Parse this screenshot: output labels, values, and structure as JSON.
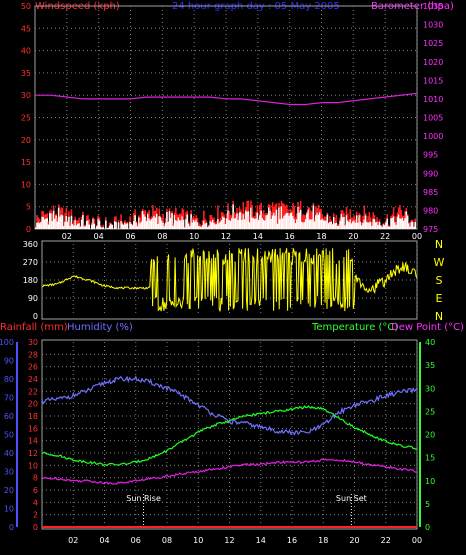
{
  "header": {
    "windspeed_label": "Windspeed (kph)",
    "title": "24 hour graph day : 05 May 2005",
    "barometer_label": "Barometer (hpa)"
  },
  "bottom_labels": {
    "rainfall": "Rainfall (mm)",
    "humidity": "Humidity (%)",
    "temperature": "Temperature (°C)",
    "dewpoint": "Dew Point (°C)"
  },
  "annotations": {
    "sunrise": "Sun Rise",
    "sunset": "Sun Set"
  },
  "x_ticks": [
    "02",
    "04",
    "06",
    "08",
    "10",
    "12",
    "14",
    "16",
    "18",
    "20",
    "22",
    "00"
  ],
  "colors": {
    "windspeed": "#ff2020",
    "gust": "#ffffff",
    "wind_avg": "#20ff20",
    "barometer": "#e020e0",
    "direction": "#ffff00",
    "rainfall": "#ff2020",
    "humidity": "#7070ff",
    "temperature": "#20ff20",
    "dewpoint": "#e020e0",
    "axis_red": "#ff3030",
    "axis_magenta": "#ff30ff",
    "axis_blue": "#5050ff",
    "axis_green": "#30ff30",
    "title": "#3030ff",
    "grid": "#808080"
  },
  "chart_data": [
    {
      "type": "line",
      "name": "wind-barometer",
      "x": [
        0,
        1,
        2,
        3,
        4,
        5,
        6,
        7,
        8,
        9,
        10,
        11,
        12,
        13,
        14,
        15,
        16,
        17,
        18,
        19,
        20,
        21,
        22,
        23,
        24
      ],
      "series": [
        {
          "name": "Windspeed (kph)",
          "axis": "left",
          "values": [
            2,
            4,
            3,
            2,
            1,
            1,
            2,
            4,
            3,
            3,
            2,
            3,
            4,
            5,
            4,
            5,
            4,
            5,
            3,
            2,
            4,
            3,
            2,
            4,
            1
          ]
        },
        {
          "name": "Barometer (hpa)",
          "axis": "right",
          "values": [
            1011,
            1011,
            1010.5,
            1010,
            1010,
            1010,
            1010,
            1010.5,
            1010.5,
            1010.5,
            1010.5,
            1010.5,
            1010,
            1010,
            1009.5,
            1009,
            1008.5,
            1008.5,
            1009,
            1009,
            1009.5,
            1010,
            1010.5,
            1011,
            1011.5
          ]
        }
      ],
      "ylim_left": [
        0,
        50
      ],
      "ylim_right": [
        975,
        1035
      ],
      "yticks_left": [
        0,
        5,
        10,
        15,
        20,
        25,
        30,
        35,
        40,
        45,
        50
      ],
      "yticks_right": [
        975,
        980,
        985,
        990,
        995,
        1000,
        1005,
        1010,
        1015,
        1020,
        1025,
        1030,
        1035
      ],
      "grid": true
    },
    {
      "type": "line",
      "name": "wind-direction",
      "x": [
        0,
        1,
        2,
        3,
        4,
        5,
        6,
        6.9,
        7,
        8,
        9,
        10,
        11,
        12,
        13,
        14,
        15,
        16,
        17,
        18,
        19,
        20,
        21,
        22,
        23,
        24
      ],
      "values": [
        150,
        160,
        200,
        180,
        150,
        140,
        140,
        140,
        320,
        300,
        180,
        240,
        60,
        300,
        270,
        150,
        320,
        100,
        220,
        300,
        230,
        200,
        130,
        180,
        250,
        210
      ],
      "ylim": [
        0,
        360
      ],
      "yticks": [
        0,
        90,
        180,
        270,
        360
      ],
      "right_labels": [
        "N",
        "W",
        "S",
        "E",
        "N"
      ],
      "grid": true
    },
    {
      "type": "line",
      "name": "rain-humidity-temperature",
      "x": [
        0,
        1,
        2,
        3,
        4,
        5,
        6,
        7,
        8,
        9,
        10,
        11,
        12,
        13,
        14,
        15,
        16,
        17,
        18,
        19,
        20,
        21,
        22,
        23,
        24
      ],
      "series": [
        {
          "name": "Humidity (%)",
          "axis": "left_blue",
          "values": [
            68,
            69,
            71,
            74,
            78,
            80,
            80,
            78,
            75,
            71,
            66,
            61,
            57,
            56,
            54,
            52,
            51,
            51,
            55,
            62,
            66,
            68,
            71,
            73,
            74
          ]
        },
        {
          "name": "Rainfall (mm)",
          "axis": "left_red",
          "values": [
            0,
            0,
            0,
            0,
            0,
            0,
            0,
            0,
            0,
            0,
            0,
            0,
            0,
            0,
            0,
            0,
            0,
            0,
            0,
            0,
            0,
            0,
            0,
            0,
            0
          ]
        },
        {
          "name": "Temperature (°C)",
          "axis": "right",
          "values": [
            16,
            15.5,
            14.5,
            14,
            13.5,
            13.5,
            14,
            15,
            16.5,
            18.5,
            20.5,
            22,
            23,
            24,
            24.5,
            25,
            25.5,
            26,
            25.5,
            23.5,
            21.5,
            20,
            18.5,
            17.5,
            17
          ]
        },
        {
          "name": "Dew Point (°C)",
          "axis": "right",
          "values": [
            10.5,
            10.5,
            10,
            10,
            9.5,
            9.5,
            10,
            10.5,
            11,
            11.5,
            12,
            12.5,
            13,
            13.5,
            13.5,
            14,
            14,
            14,
            14.5,
            14.5,
            14,
            13.5,
            13,
            12.5,
            12
          ]
        }
      ],
      "ylim_blue": [
        0,
        100
      ],
      "ylim_red": [
        0,
        30
      ],
      "ylim_right": [
        0,
        40
      ],
      "yticks_blue": [
        0,
        10,
        20,
        30,
        40,
        50,
        60,
        70,
        80,
        90,
        100
      ],
      "yticks_red": [
        0,
        2,
        4,
        6,
        8,
        10,
        12,
        14,
        16,
        18,
        20,
        22,
        24,
        26,
        28,
        30
      ],
      "yticks_right": [
        0,
        5,
        10,
        15,
        20,
        25,
        30,
        35,
        40
      ],
      "sunrise_hour": 6.5,
      "sunset_hour": 19.8,
      "grid": true
    }
  ]
}
